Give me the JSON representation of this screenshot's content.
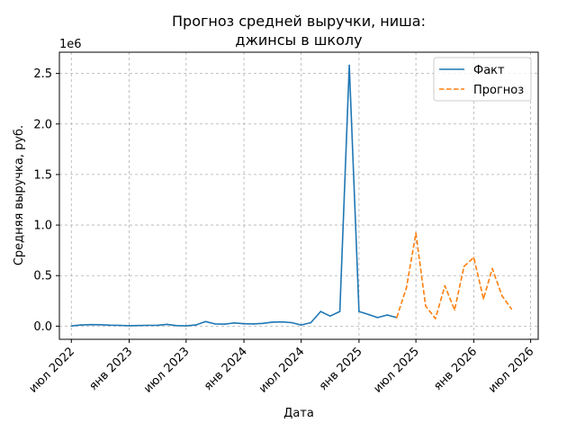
{
  "chart_data": {
    "type": "line",
    "title_line1": "Прогноз средней выручки, ниша:",
    "title_line2": "джинсы в школу",
    "xlabel": "Дата",
    "ylabel": "Средняя выручка, руб.",
    "y_offset_label": "1e6",
    "ylim": [
      -130000,
      2710000
    ],
    "xlim": [
      "2022-05-24",
      "2026-07-25"
    ],
    "x_ticks": [
      {
        "date": "2022-07-01",
        "label": "июл 2022"
      },
      {
        "date": "2023-01-01",
        "label": "янв 2023"
      },
      {
        "date": "2023-07-01",
        "label": "июл 2023"
      },
      {
        "date": "2024-01-01",
        "label": "янв 2024"
      },
      {
        "date": "2024-07-01",
        "label": "июл 2024"
      },
      {
        "date": "2025-01-01",
        "label": "янв 2025"
      },
      {
        "date": "2025-07-01",
        "label": "июл 2025"
      },
      {
        "date": "2026-01-01",
        "label": "янв 2026"
      },
      {
        "date": "2026-07-01",
        "label": "июл 2026"
      }
    ],
    "y_ticks": [
      {
        "value": 0,
        "label": "0.0"
      },
      {
        "value": 500000,
        "label": "0.5"
      },
      {
        "value": 1000000,
        "label": "1.0"
      },
      {
        "value": 1500000,
        "label": "1.5"
      },
      {
        "value": 2000000,
        "label": "2.0"
      },
      {
        "value": 2500000,
        "label": "2.5"
      }
    ],
    "grid": true,
    "legend_position": "top-right",
    "series": [
      {
        "name": "Факт",
        "color": "#1f77b4",
        "dash": "solid",
        "points": [
          [
            "2022-07-01",
            2000
          ],
          [
            "2022-08-01",
            12000
          ],
          [
            "2022-09-01",
            15000
          ],
          [
            "2022-10-01",
            14000
          ],
          [
            "2022-11-01",
            10000
          ],
          [
            "2022-12-01",
            8000
          ],
          [
            "2023-01-01",
            4000
          ],
          [
            "2023-02-01",
            6000
          ],
          [
            "2023-03-01",
            8000
          ],
          [
            "2023-04-01",
            9000
          ],
          [
            "2023-05-01",
            18000
          ],
          [
            "2023-06-01",
            5000
          ],
          [
            "2023-07-01",
            3000
          ],
          [
            "2023-08-01",
            12000
          ],
          [
            "2023-09-01",
            45000
          ],
          [
            "2023-10-01",
            22000
          ],
          [
            "2023-11-01",
            20000
          ],
          [
            "2023-12-01",
            32000
          ],
          [
            "2024-01-01",
            24000
          ],
          [
            "2024-02-01",
            22000
          ],
          [
            "2024-03-01",
            28000
          ],
          [
            "2024-04-01",
            40000
          ],
          [
            "2024-05-01",
            42000
          ],
          [
            "2024-06-01",
            35000
          ],
          [
            "2024-07-01",
            12000
          ],
          [
            "2024-08-01",
            35000
          ],
          [
            "2024-09-01",
            145000
          ],
          [
            "2024-10-01",
            100000
          ],
          [
            "2024-11-01",
            145000
          ],
          [
            "2024-12-01",
            2580000
          ],
          [
            "2025-01-01",
            145000
          ],
          [
            "2025-02-01",
            115000
          ],
          [
            "2025-03-01",
            85000
          ],
          [
            "2025-04-01",
            110000
          ],
          [
            "2025-05-01",
            85000
          ]
        ]
      },
      {
        "name": "Прогноз",
        "color": "#ff7f0e",
        "dash": "dashed",
        "points": [
          [
            "2025-05-01",
            85000
          ],
          [
            "2025-06-01",
            380000
          ],
          [
            "2025-07-01",
            920000
          ],
          [
            "2025-08-01",
            200000
          ],
          [
            "2025-09-01",
            75000
          ],
          [
            "2025-10-01",
            400000
          ],
          [
            "2025-11-01",
            160000
          ],
          [
            "2025-12-01",
            590000
          ],
          [
            "2026-01-01",
            680000
          ],
          [
            "2026-02-01",
            270000
          ],
          [
            "2026-03-01",
            570000
          ],
          [
            "2026-04-01",
            300000
          ],
          [
            "2026-05-01",
            170000
          ]
        ]
      }
    ]
  }
}
